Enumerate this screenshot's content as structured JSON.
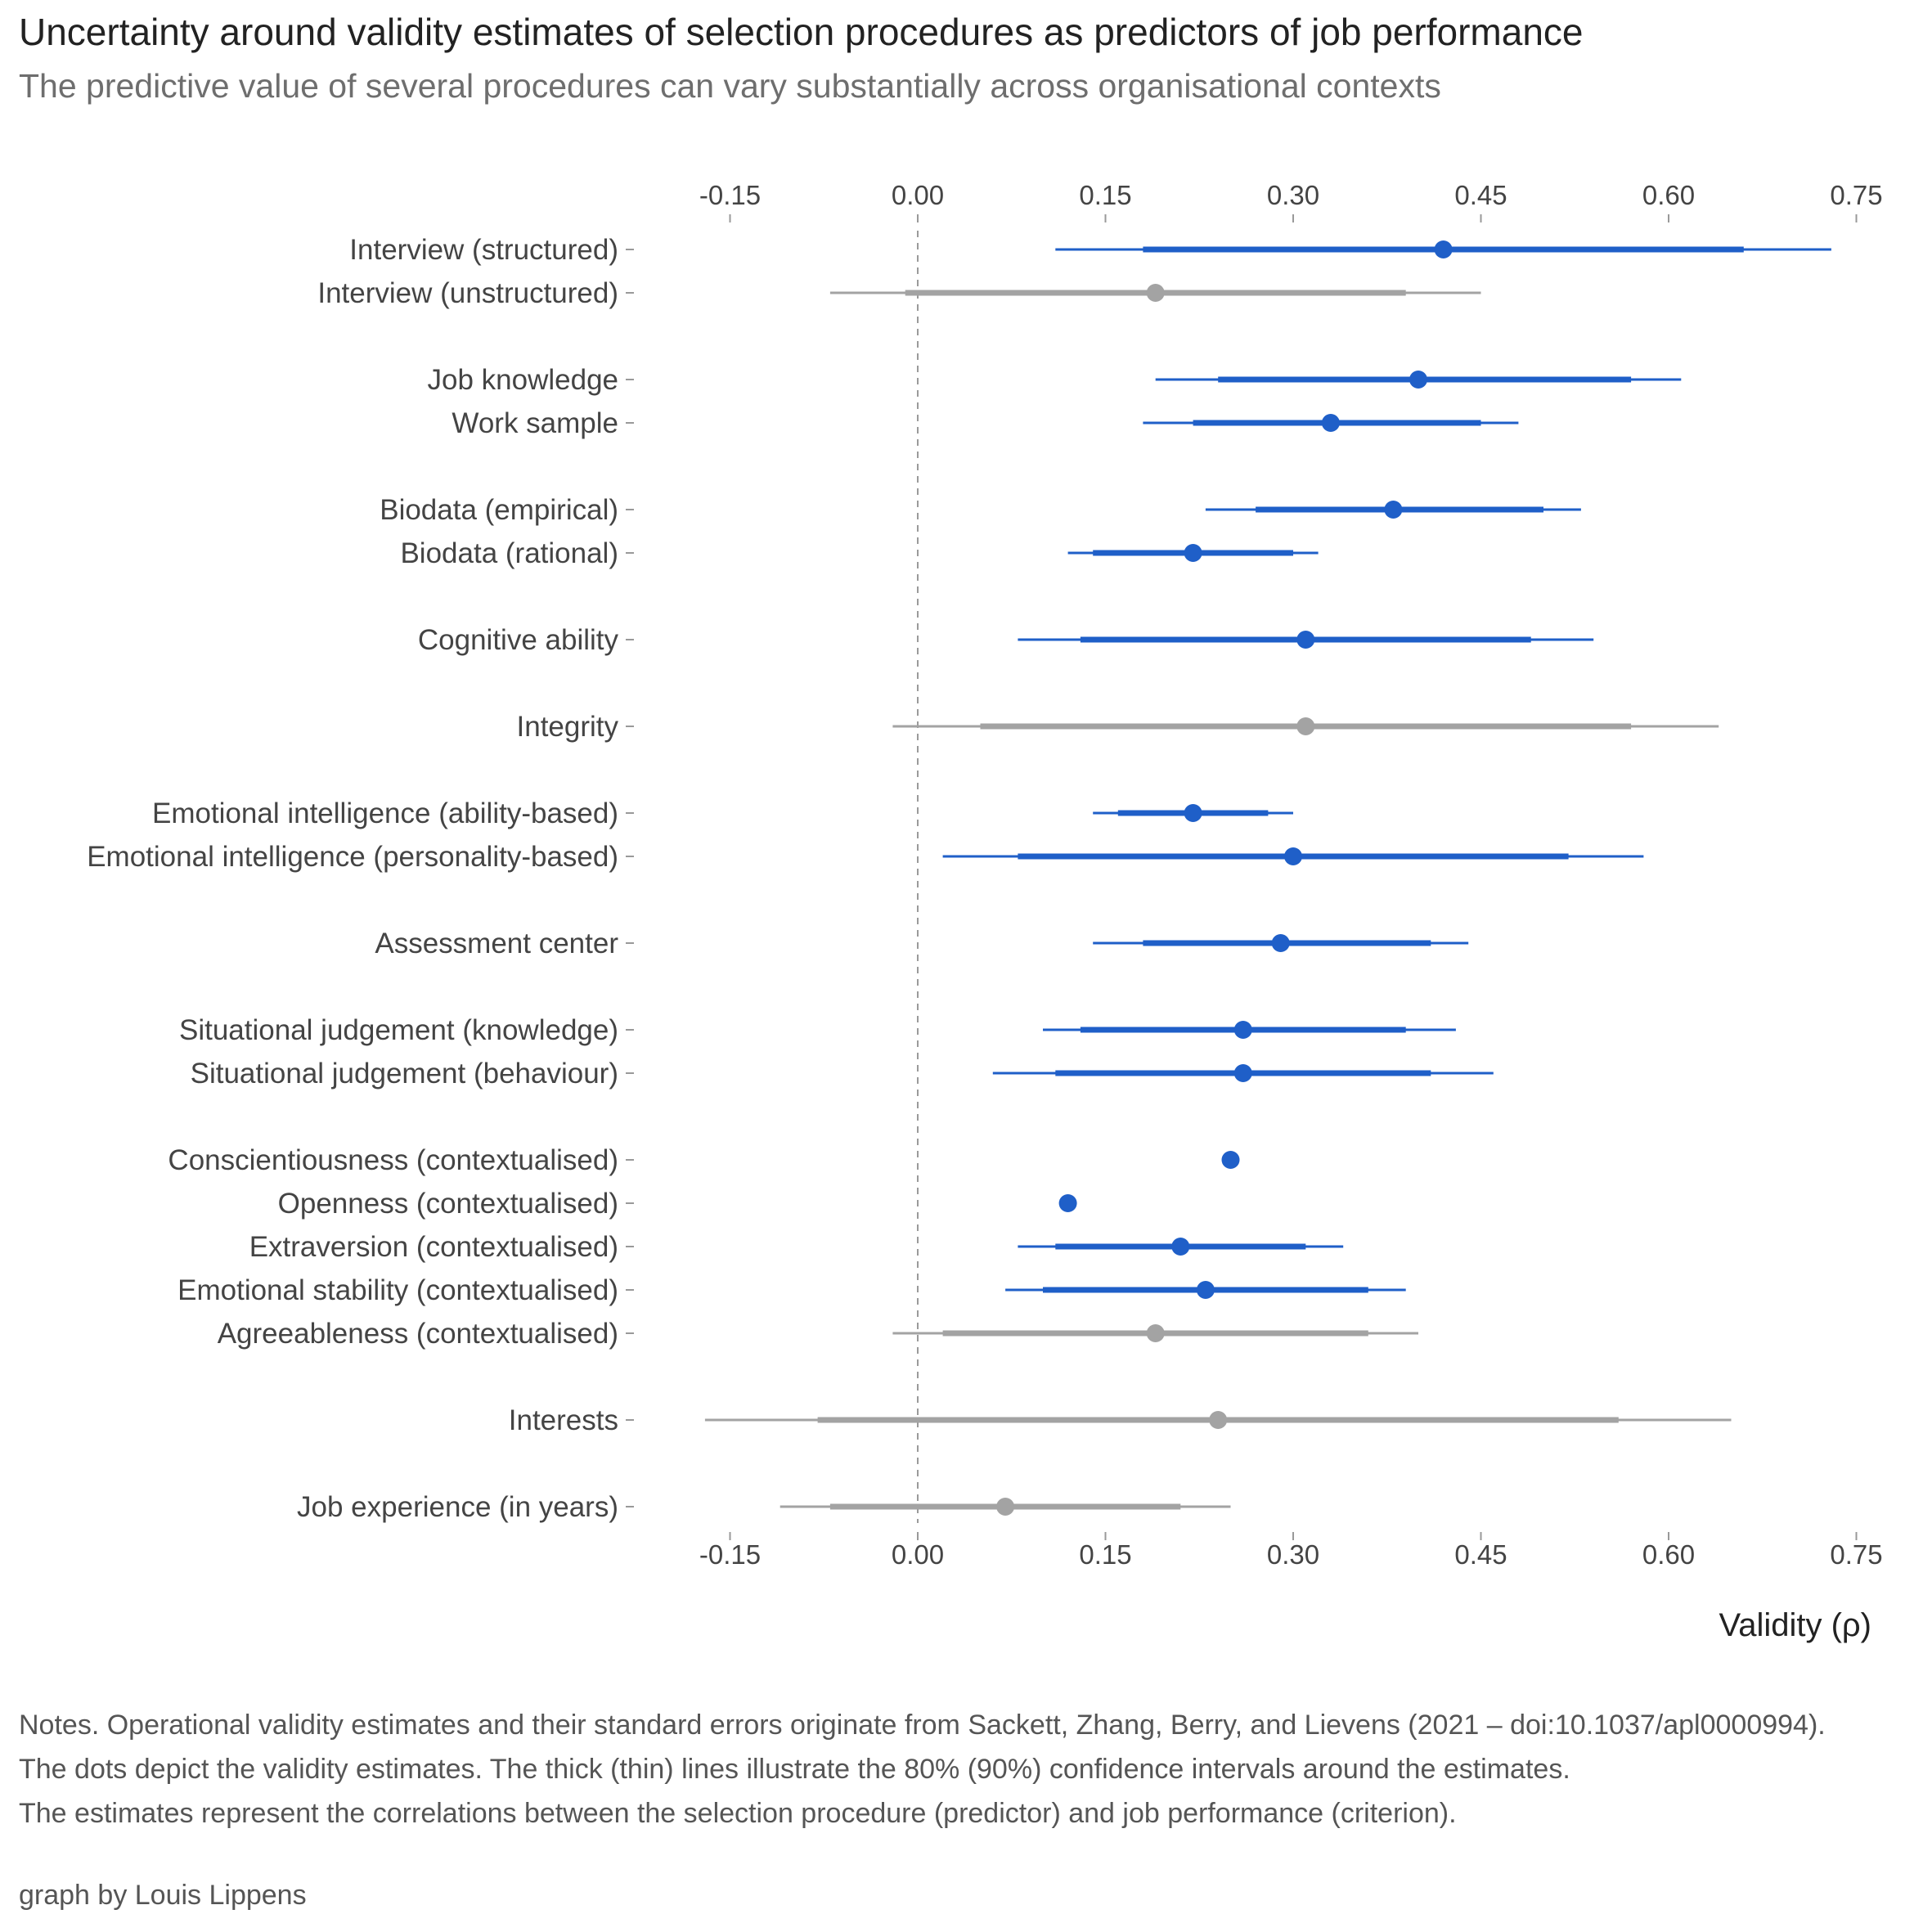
{
  "chart_data": {
    "type": "forest",
    "title": "Uncertainty around validity estimates of selection procedures as predictors of job performance",
    "subtitle": "The predictive value of several procedures can vary substantially across organisational contexts",
    "xlabel": "Validity (ρ)",
    "xlim": [
      -0.2,
      0.76
    ],
    "xticks": [
      "-0.15",
      "0.00",
      "0.15",
      "0.30",
      "0.45",
      "0.60",
      "0.75"
    ],
    "xtick_values": [
      -0.15,
      0,
      0.15,
      0.3,
      0.45,
      0.6,
      0.75
    ],
    "reference_line": 0,
    "colors": {
      "significant": "#1f5fc8",
      "non_significant": "#a3a3a3"
    },
    "legend": "none",
    "rows": [
      {
        "label": "Interview (structured)",
        "group": 1,
        "estimate": 0.42,
        "ci80": [
          0.18,
          0.66
        ],
        "ci90": [
          0.11,
          0.73
        ],
        "significant": true
      },
      {
        "label": "Interview (unstructured)",
        "group": 1,
        "estimate": 0.19,
        "ci80": [
          -0.01,
          0.39
        ],
        "ci90": [
          -0.07,
          0.45
        ],
        "significant": false
      },
      {
        "label": "Job knowledge",
        "group": 2,
        "estimate": 0.4,
        "ci80": [
          0.24,
          0.57
        ],
        "ci90": [
          0.19,
          0.61
        ],
        "significant": true
      },
      {
        "label": "Work sample",
        "group": 2,
        "estimate": 0.33,
        "ci80": [
          0.22,
          0.45
        ],
        "ci90": [
          0.18,
          0.48
        ],
        "significant": true
      },
      {
        "label": "Biodata (empirical)",
        "group": 3,
        "estimate": 0.38,
        "ci80": [
          0.27,
          0.5
        ],
        "ci90": [
          0.23,
          0.53
        ],
        "significant": true
      },
      {
        "label": "Biodata (rational)",
        "group": 3,
        "estimate": 0.22,
        "ci80": [
          0.14,
          0.3
        ],
        "ci90": [
          0.12,
          0.32
        ],
        "significant": true
      },
      {
        "label": "Cognitive ability",
        "group": 4,
        "estimate": 0.31,
        "ci80": [
          0.13,
          0.49
        ],
        "ci90": [
          0.08,
          0.54
        ],
        "significant": true
      },
      {
        "label": "Integrity",
        "group": 5,
        "estimate": 0.31,
        "ci80": [
          0.05,
          0.57
        ],
        "ci90": [
          -0.02,
          0.64
        ],
        "significant": false
      },
      {
        "label": "Emotional intelligence (ability-based)",
        "group": 6,
        "estimate": 0.22,
        "ci80": [
          0.16,
          0.28
        ],
        "ci90": [
          0.14,
          0.3
        ],
        "significant": true
      },
      {
        "label": "Emotional intelligence (personality-based)",
        "group": 6,
        "estimate": 0.3,
        "ci80": [
          0.08,
          0.52
        ],
        "ci90": [
          0.02,
          0.58
        ],
        "significant": true
      },
      {
        "label": "Assessment center",
        "group": 7,
        "estimate": 0.29,
        "ci80": [
          0.18,
          0.41
        ],
        "ci90": [
          0.14,
          0.44
        ],
        "significant": true
      },
      {
        "label": "Situational judgement (knowledge)",
        "group": 8,
        "estimate": 0.26,
        "ci80": [
          0.13,
          0.39
        ],
        "ci90": [
          0.1,
          0.43
        ],
        "significant": true
      },
      {
        "label": "Situational judgement (behaviour)",
        "group": 8,
        "estimate": 0.26,
        "ci80": [
          0.11,
          0.41
        ],
        "ci90": [
          0.06,
          0.46
        ],
        "significant": true
      },
      {
        "label": "Conscientiousness (contextualised)",
        "group": 9,
        "estimate": 0.25,
        "ci80": null,
        "ci90": null,
        "significant": true
      },
      {
        "label": "Openness (contextualised)",
        "group": 9,
        "estimate": 0.12,
        "ci80": null,
        "ci90": null,
        "significant": true
      },
      {
        "label": "Extraversion (contextualised)",
        "group": 9,
        "estimate": 0.21,
        "ci80": [
          0.11,
          0.31
        ],
        "ci90": [
          0.08,
          0.34
        ],
        "significant": true
      },
      {
        "label": "Emotional stability (contextualised)",
        "group": 9,
        "estimate": 0.23,
        "ci80": [
          0.1,
          0.36
        ],
        "ci90": [
          0.07,
          0.39
        ],
        "significant": true
      },
      {
        "label": "Agreeableness (contextualised)",
        "group": 9,
        "estimate": 0.19,
        "ci80": [
          0.02,
          0.36
        ],
        "ci90": [
          -0.02,
          0.4
        ],
        "significant": false
      },
      {
        "label": "Interests",
        "group": 10,
        "estimate": 0.24,
        "ci80": [
          -0.08,
          0.56
        ],
        "ci90": [
          -0.17,
          0.65
        ],
        "significant": false
      },
      {
        "label": "Job experience (in years)",
        "group": 11,
        "estimate": 0.07,
        "ci80": [
          -0.07,
          0.21
        ],
        "ci90": [
          -0.11,
          0.25
        ],
        "significant": false
      }
    ]
  },
  "notes": {
    "line1": "Notes. Operational validity estimates and their standard errors originate from Sackett, Zhang, Berry, and Lievens (2021 – doi:10.1037/apl0000994).",
    "line2": "The dots depict the validity estimates. The thick (thin) lines illustrate the 80% (90%) confidence intervals around the estimates.",
    "line3": "The estimates represent the correlations between the selection procedure (predictor) and job performance (criterion)."
  },
  "credit": "graph by Louis Lippens"
}
